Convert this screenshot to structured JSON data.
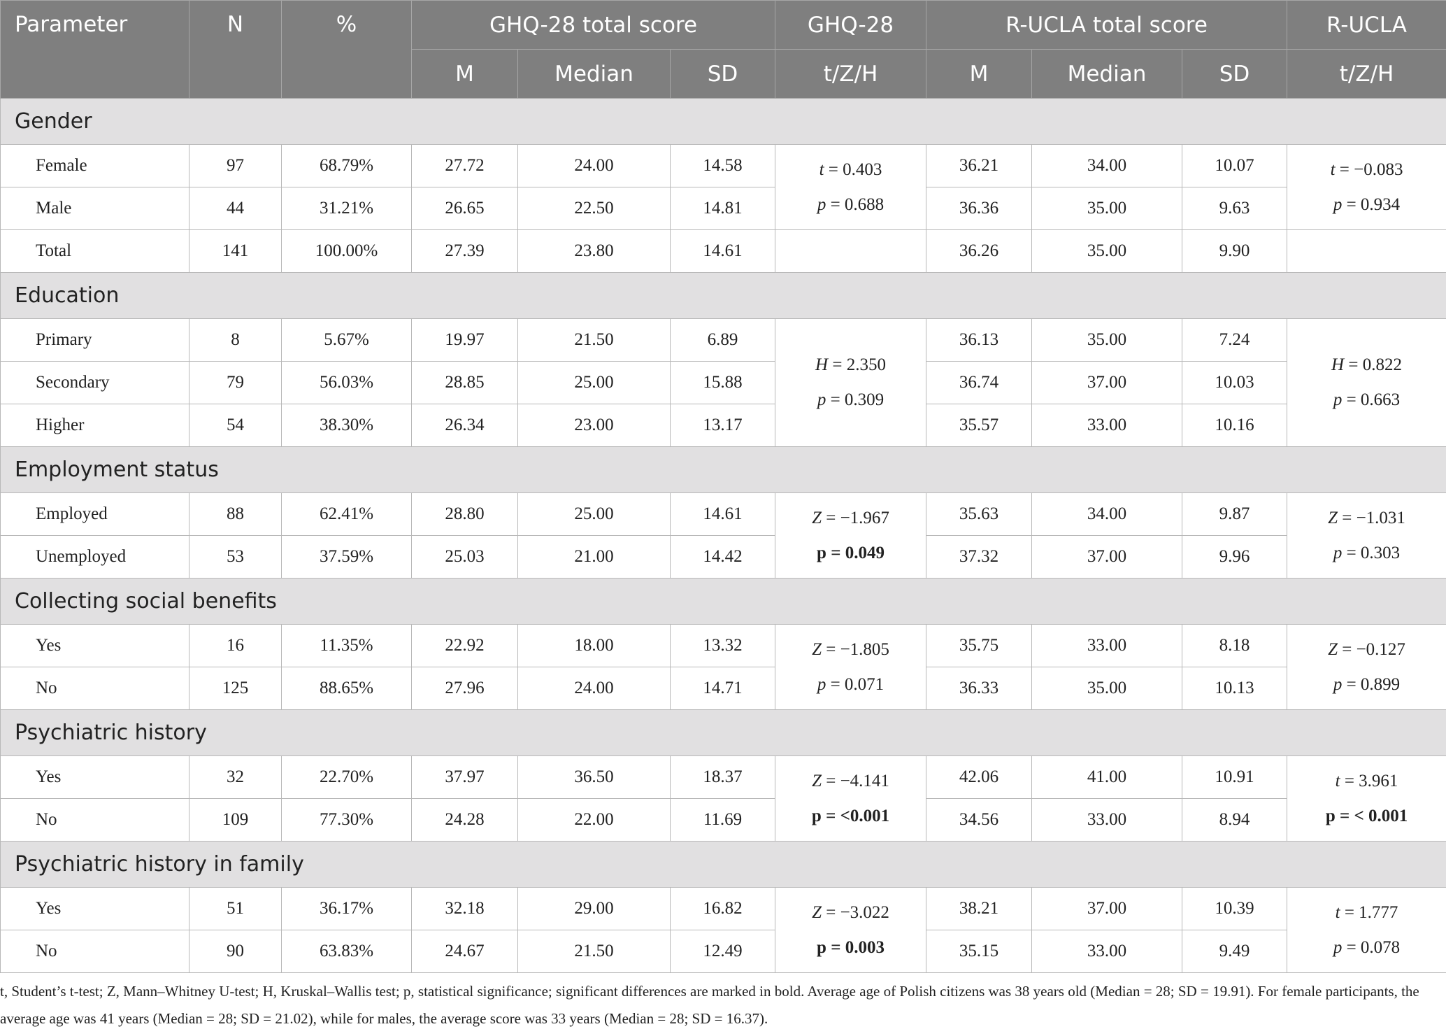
{
  "header": {
    "row1": [
      "Parameter",
      "N",
      "%",
      "GHQ-28 total score",
      "GHQ-28",
      "R-UCLA total score",
      "R-UCLA"
    ],
    "row2": [
      "M",
      "Median",
      "SD",
      "t/Z/H",
      "M",
      "Median",
      "SD",
      "t/Z/H"
    ]
  },
  "sections": [
    {
      "title": "Gender",
      "rows": [
        [
          "Female",
          "97",
          "68.79%",
          "27.72",
          "24.00",
          "14.58",
          "36.21",
          "34.00",
          "10.07"
        ],
        [
          "Male",
          "44",
          "31.21%",
          "26.65",
          "22.50",
          "14.81",
          "36.36",
          "35.00",
          "9.63"
        ],
        [
          "Total",
          "141",
          "100.00%",
          "27.39",
          "23.80",
          "14.61",
          "36.26",
          "35.00",
          "9.90"
        ]
      ],
      "ghq": {
        "stat": "t = 0.403",
        "p": "p = 0.688",
        "p_bold": false
      },
      "rucla": {
        "stat": "t = −0.083",
        "p": "p = 0.934",
        "p_bold": false
      }
    },
    {
      "title": "Education",
      "rows": [
        [
          "Primary",
          "8",
          "5.67%",
          "19.97",
          "21.50",
          "6.89",
          "36.13",
          "35.00",
          "7.24"
        ],
        [
          "Secondary",
          "79",
          "56.03%",
          "28.85",
          "25.00",
          "15.88",
          "36.74",
          "37.00",
          "10.03"
        ],
        [
          "Higher",
          "54",
          "38.30%",
          "26.34",
          "23.00",
          "13.17",
          "35.57",
          "33.00",
          "10.16"
        ]
      ],
      "ghq": {
        "stat": "H = 2.350",
        "p": "p = 0.309",
        "p_bold": false
      },
      "rucla": {
        "stat": "H = 0.822",
        "p": "p = 0.663",
        "p_bold": false
      }
    },
    {
      "title": "Employment status",
      "rows": [
        [
          "Employed",
          "88",
          "62.41%",
          "28.80",
          "25.00",
          "14.61",
          "35.63",
          "34.00",
          "9.87"
        ],
        [
          "Unemployed",
          "53",
          "37.59%",
          "25.03",
          "21.00",
          "14.42",
          "37.32",
          "37.00",
          "9.96"
        ]
      ],
      "ghq": {
        "stat": "Z = −1.967",
        "p": "p = 0.049",
        "p_bold": true
      },
      "rucla": {
        "stat": "Z = −1.031",
        "p": "p = 0.303",
        "p_bold": false
      }
    },
    {
      "title": "Collecting social benefits",
      "rows": [
        [
          "Yes",
          "16",
          "11.35%",
          "22.92",
          "18.00",
          "13.32",
          "35.75",
          "33.00",
          "8.18"
        ],
        [
          "No",
          "125",
          "88.65%",
          "27.96",
          "24.00",
          "14.71",
          "36.33",
          "35.00",
          "10.13"
        ]
      ],
      "ghq": {
        "stat": "Z = −1.805",
        "p": "p = 0.071",
        "p_bold": false
      },
      "rucla": {
        "stat": "Z = −0.127",
        "p": "p = 0.899",
        "p_bold": false
      }
    },
    {
      "title": "Psychiatric history",
      "rows": [
        [
          "Yes",
          "32",
          "22.70%",
          "37.97",
          "36.50",
          "18.37",
          "42.06",
          "41.00",
          "10.91"
        ],
        [
          "No",
          "109",
          "77.30%",
          "24.28",
          "22.00",
          "11.69",
          "34.56",
          "33.00",
          "8.94"
        ]
      ],
      "ghq": {
        "stat": "Z = −4.141",
        "p": "p = <0.001",
        "p_bold": true
      },
      "rucla": {
        "stat": "t = 3.961",
        "p": "p = < 0.001",
        "p_bold": true
      }
    },
    {
      "title": "Psychiatric history in family",
      "rows": [
        [
          "Yes",
          "51",
          "36.17%",
          "32.18",
          "29.00",
          "16.82",
          "38.21",
          "37.00",
          "10.39"
        ],
        [
          "No",
          "90",
          "63.83%",
          "24.67",
          "21.50",
          "12.49",
          "35.15",
          "33.00",
          "9.49"
        ]
      ],
      "ghq": {
        "stat": "Z = −3.022",
        "p": "p = 0.003",
        "p_bold": true
      },
      "rucla": {
        "stat": "t = 1.777",
        "p": "p = 0.078",
        "p_bold": false
      }
    }
  ],
  "footnote": "t, Student’s t-test; Z, Mann–Whitney U-test; H, Kruskal–Wallis test; p, statistical significance; significant differences are marked in bold. Average age of Polish citizens was 38 years old (Median = 28; SD = 19.91). For female participants, the average age was 41 years (Median = 28; SD = 21.02), while for males, the average score was 33 years (Median = 28; SD = 16.37)."
}
